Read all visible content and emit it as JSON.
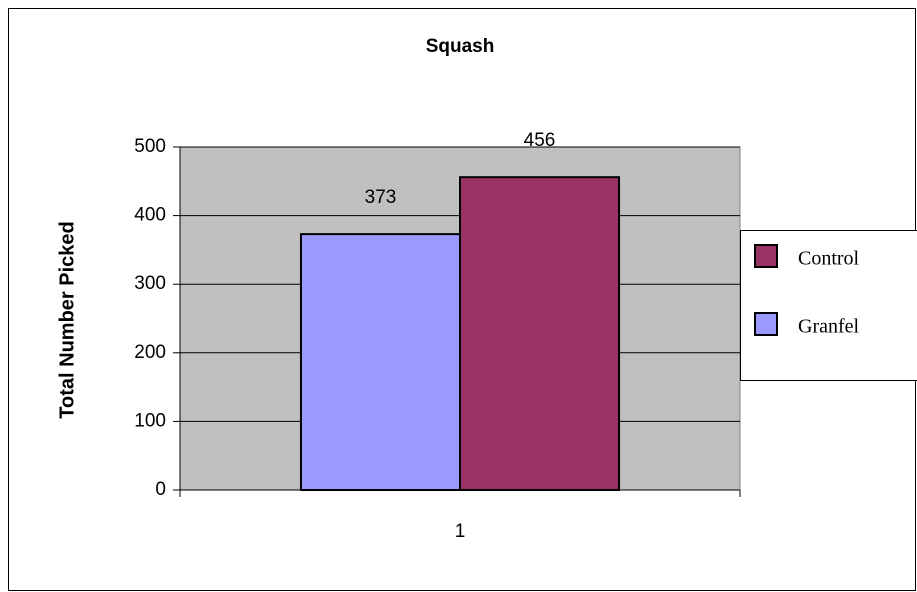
{
  "chart_data": {
    "type": "bar",
    "title": "Squash",
    "y_label": "Total Number Picked",
    "categories": [
      "1"
    ],
    "series": [
      {
        "name": "Granfel",
        "color": "#9999ff",
        "values": [
          373
        ]
      },
      {
        "name": "Control",
        "color": "#993366",
        "values": [
          456
        ]
      }
    ],
    "ylim": [
      0,
      500
    ],
    "yticks": [
      0,
      100,
      200,
      300,
      400,
      500
    ],
    "grid": true,
    "legend": "right"
  }
}
